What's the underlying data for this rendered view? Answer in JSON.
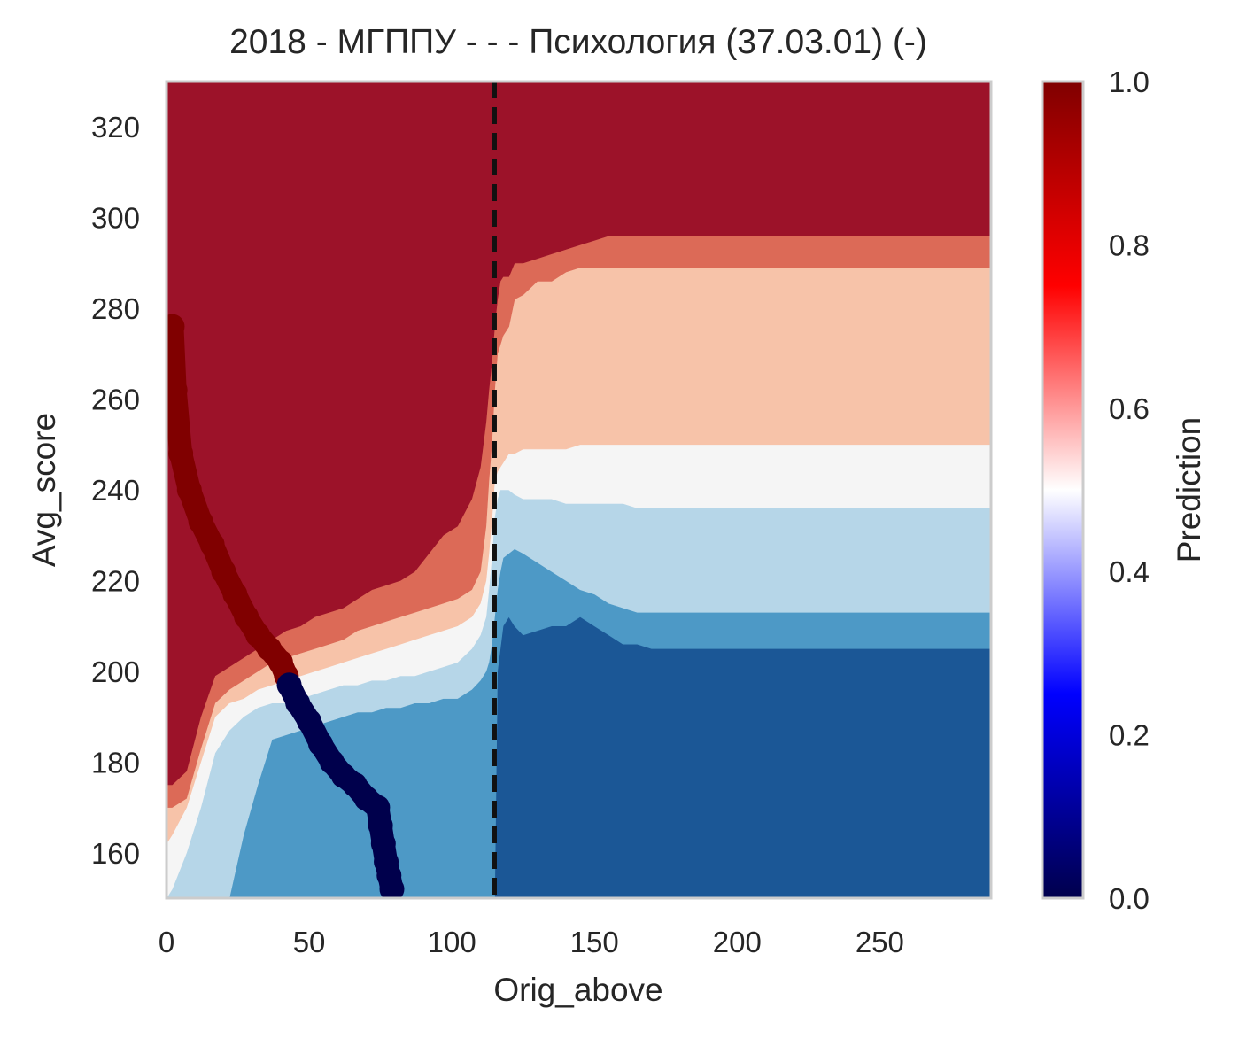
{
  "chart_data": {
    "type": "heatmap",
    "subtype": "decision-boundary-contour",
    "title": "2018 - МГППУ - - - Психология (37.03.01) (-)",
    "xlabel": "Orig_above",
    "ylabel": "Avg_score",
    "xlim": [
      0,
      289
    ],
    "ylim": [
      150,
      330
    ],
    "x_ticks": [
      0,
      50,
      100,
      150,
      200,
      250
    ],
    "x_tick_labels": [
      "0",
      "50",
      "100",
      "150",
      "200",
      "250"
    ],
    "y_ticks": [
      160,
      180,
      200,
      220,
      240,
      260,
      280,
      300,
      320
    ],
    "y_tick_labels": [
      "160",
      "180",
      "200",
      "220",
      "240",
      "260",
      "280",
      "300",
      "320"
    ],
    "grid": false,
    "colorbar": {
      "label": "Prediction",
      "range": [
        0,
        1
      ],
      "ticks": [
        0.0,
        0.2,
        0.4,
        0.6,
        0.8,
        1.0
      ],
      "tick_labels": [
        "0.0",
        "0.2",
        "0.4",
        "0.6",
        "0.8",
        "1.0"
      ],
      "colormap_stops": [
        "#00004c",
        "#0000ff",
        "#ffffff",
        "#ff0000",
        "#800000"
      ]
    },
    "contour_levels": [
      {
        "level": 0.1,
        "color": "#1b5796"
      },
      {
        "level": 0.3,
        "color": "#4d99c6"
      },
      {
        "level": 0.45,
        "color": "#b6d6e8"
      },
      {
        "level": 0.55,
        "color": "#f5f5f5"
      },
      {
        "level": 0.65,
        "color": "#f7c3a9"
      },
      {
        "level": 0.8,
        "color": "#dc6a57"
      },
      {
        "level": 0.95,
        "color": "#9c1229"
      }
    ],
    "boundaries": {
      "x": [
        0,
        2,
        7,
        12,
        17,
        22,
        27,
        32,
        37,
        42,
        47,
        52,
        57,
        62,
        67,
        72,
        77,
        82,
        87,
        92,
        97,
        102,
        107,
        110,
        112,
        113,
        114,
        115,
        116,
        117,
        118,
        120,
        122,
        125,
        130,
        135,
        140,
        145,
        150,
        155,
        160,
        165,
        170,
        180,
        190,
        200,
        210,
        220,
        230,
        240,
        250,
        260,
        270,
        280,
        289
      ],
      "b1": [
        150,
        150,
        150,
        150,
        150,
        150,
        150,
        150,
        150,
        150,
        150,
        150,
        150,
        150,
        150,
        150,
        150,
        150,
        150,
        150,
        150,
        150,
        150,
        150,
        150,
        150,
        150,
        150,
        200,
        205,
        210,
        212,
        210,
        208,
        209,
        210,
        210,
        212,
        210,
        208,
        206,
        206,
        205,
        205,
        205,
        205,
        205,
        205,
        205,
        205,
        205,
        205,
        205,
        205,
        205
      ],
      "b2": [
        150,
        150,
        150,
        150,
        150,
        150,
        164,
        175,
        185,
        186,
        187,
        188,
        189,
        190,
        191,
        191,
        192,
        192,
        193,
        193,
        194,
        194,
        196,
        198,
        200,
        202,
        206,
        212,
        218,
        222,
        225,
        226,
        227,
        226,
        224,
        222,
        220,
        218,
        217,
        215,
        214,
        213,
        213,
        213,
        213,
        213,
        213,
        213,
        213,
        213,
        213,
        213,
        213,
        213,
        213
      ],
      "b3": [
        150,
        152,
        160,
        170,
        182,
        187,
        190,
        192,
        193,
        193,
        194,
        195,
        196,
        197,
        197,
        198,
        198,
        199,
        199,
        200,
        201,
        202,
        205,
        208,
        212,
        218,
        225,
        234,
        238,
        240,
        240,
        240,
        239,
        238,
        238,
        238,
        237,
        237,
        237,
        237,
        237,
        236,
        236,
        236,
        236,
        236,
        236,
        236,
        236,
        236,
        236,
        236,
        236,
        236,
        236
      ],
      "b4": [
        162,
        164,
        170,
        180,
        190,
        193,
        194,
        196,
        197,
        198,
        199,
        200,
        201,
        202,
        203,
        204,
        205,
        206,
        207,
        208,
        209,
        210,
        212,
        215,
        220,
        226,
        233,
        242,
        244,
        245,
        246,
        248,
        248,
        249,
        249,
        249,
        249,
        250,
        250,
        250,
        250,
        250,
        250,
        250,
        250,
        250,
        250,
        250,
        250,
        250,
        250,
        250,
        250,
        250,
        250
      ],
      "b5": [
        170,
        170,
        172,
        183,
        193,
        196,
        198,
        200,
        202,
        203,
        204,
        205,
        206,
        207,
        209,
        210,
        211,
        212,
        213,
        214,
        215,
        216,
        218,
        222,
        232,
        242,
        250,
        262,
        270,
        272,
        274,
        276,
        282,
        283,
        286,
        286,
        288,
        289,
        289,
        289,
        289,
        289,
        289,
        289,
        289,
        289,
        289,
        289,
        289,
        289,
        289,
        289,
        289,
        289,
        289
      ],
      "b6": [
        175,
        175,
        178,
        190,
        199,
        201,
        203,
        205,
        207,
        209,
        210,
        212,
        213,
        214,
        216,
        218,
        219,
        220,
        222,
        226,
        230,
        232,
        238,
        245,
        255,
        262,
        268,
        276,
        282,
        286,
        287,
        287,
        290,
        290,
        291,
        292,
        293,
        294,
        295,
        296,
        296,
        296,
        296,
        296,
        296,
        296,
        296,
        296,
        296,
        296,
        296,
        296,
        296,
        296,
        296
      ]
    },
    "series": [
      {
        "color": "#800000",
        "x": [
          2,
          3,
          5,
          8,
          12,
          16,
          20,
          24,
          28,
          32,
          36,
          40,
          42
        ],
        "y": [
          276,
          262,
          248,
          240,
          233,
          228,
          222,
          217,
          212,
          208,
          205,
          202,
          199
        ]
      },
      {
        "color": "#00004c",
        "x": [
          43,
          46,
          50,
          54,
          58,
          62,
          66,
          70,
          74,
          75,
          76,
          77,
          78,
          79
        ],
        "y": [
          197,
          193,
          189,
          184,
          180,
          177,
          175,
          172,
          170,
          166,
          162,
          158,
          155,
          152
        ]
      }
    ],
    "reference_line": {
      "x": 115,
      "style": "dashed",
      "color": "#111111"
    }
  }
}
